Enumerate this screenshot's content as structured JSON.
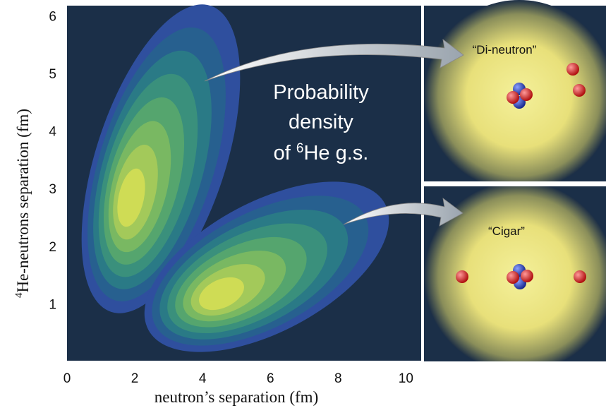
{
  "chart_data": {
    "type": "contour",
    "x_label": "neutron’s separation (fm)",
    "y_label_sup": "4",
    "y_label": "He-neutrons separation (fm)",
    "xlim": [
      0,
      10.45
    ],
    "ylim": [
      0,
      6.2
    ],
    "xticks": [
      0,
      2,
      4,
      6,
      8,
      10
    ],
    "yticks": [
      1,
      2,
      3,
      4,
      5,
      6
    ],
    "contour_colors": [
      "#2f4f9e",
      "#27608f",
      "#2a7a86",
      "#3a907c",
      "#55a56e",
      "#79b862",
      "#a3c95a",
      "#cfdc55"
    ],
    "annotation": {
      "lines": [
        "Probability",
        "density"
      ],
      "prefix": "of ",
      "sup": "6",
      "suffix": "He g.s."
    },
    "insets": [
      {
        "label": "“Di-neutron”"
      },
      {
        "label": "“Cigar”"
      }
    ]
  }
}
